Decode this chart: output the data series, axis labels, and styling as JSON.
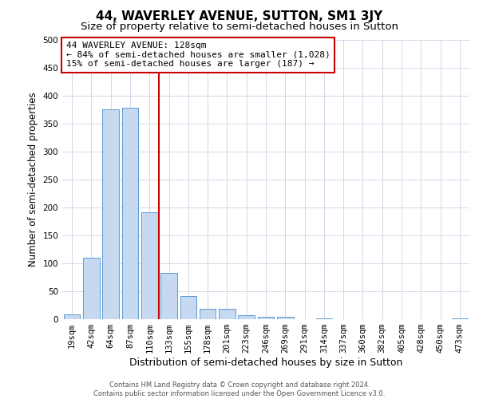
{
  "title": "44, WAVERLEY AVENUE, SUTTON, SM1 3JY",
  "subtitle": "Size of property relative to semi-detached houses in Sutton",
  "xlabel": "Distribution of semi-detached houses by size in Sutton",
  "ylabel": "Number of semi-detached properties",
  "footer_line1": "Contains HM Land Registry data © Crown copyright and database right 2024.",
  "footer_line2": "Contains public sector information licensed under the Open Government Licence v3.0.",
  "bin_labels": [
    "19sqm",
    "42sqm",
    "64sqm",
    "87sqm",
    "110sqm",
    "133sqm",
    "155sqm",
    "178sqm",
    "201sqm",
    "223sqm",
    "246sqm",
    "269sqm",
    "291sqm",
    "314sqm",
    "337sqm",
    "360sqm",
    "382sqm",
    "405sqm",
    "428sqm",
    "450sqm",
    "473sqm"
  ],
  "bar_values": [
    8,
    110,
    376,
    379,
    191,
    83,
    41,
    19,
    19,
    7,
    5,
    5,
    0,
    2,
    0,
    0,
    0,
    0,
    0,
    0,
    2
  ],
  "bar_color": "#c6d9f0",
  "bar_edge_color": "#5b9bd5",
  "vline_bin_index": 5,
  "annotation_title": "44 WAVERLEY AVENUE: 128sqm",
  "annotation_line1": "← 84% of semi-detached houses are smaller (1,028)",
  "annotation_line2": "15% of semi-detached houses are larger (187) →",
  "vline_color": "#cc0000",
  "annotation_box_color": "#cc0000",
  "ylim": [
    0,
    500
  ],
  "yticks": [
    0,
    50,
    100,
    150,
    200,
    250,
    300,
    350,
    400,
    450,
    500
  ],
  "background_color": "#ffffff",
  "grid_color": "#d0d8e8",
  "title_fontsize": 11,
  "subtitle_fontsize": 9.5,
  "xlabel_fontsize": 9,
  "ylabel_fontsize": 8.5,
  "tick_fontsize": 7.5,
  "annotation_fontsize": 8,
  "footer_fontsize": 6
}
